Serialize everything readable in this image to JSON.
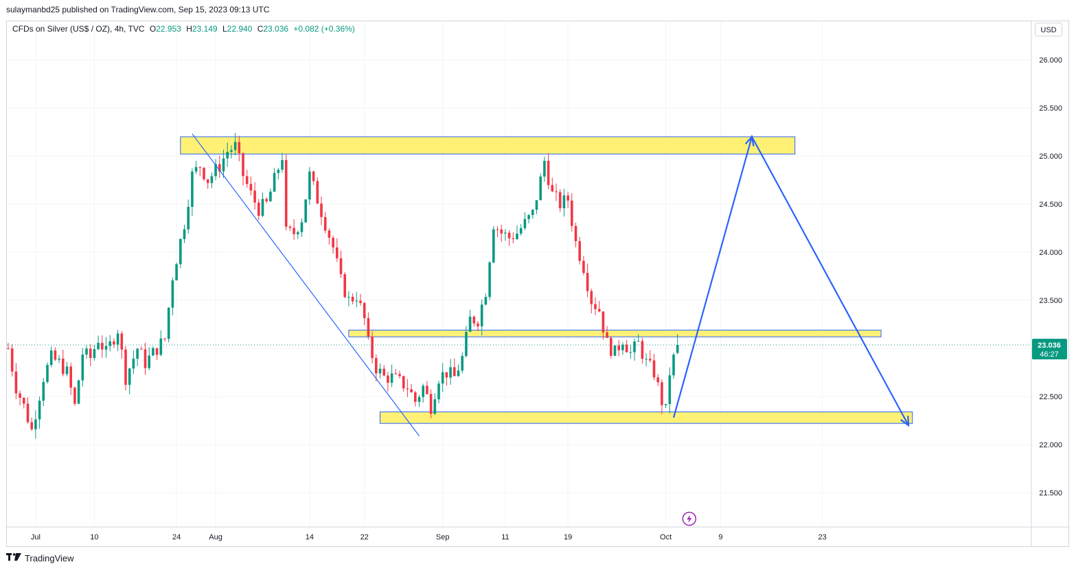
{
  "header": {
    "published": "sulaymanbd25 published on TradingView.com, Sep 15, 2023 09:13 UTC"
  },
  "legend": {
    "symbol": "CFDs on Silver (US$ / OZ), 4h, TVC",
    "o_label": "O",
    "o_value": "22.953",
    "h_label": "H",
    "h_value": "23.149",
    "l_label": "L",
    "l_value": "22.940",
    "c_label": "C",
    "c_value": "23.036",
    "change": "+0.082 (+0.36%)"
  },
  "currency_button": "USD",
  "footer": {
    "brand": "TradingView",
    "logo_icon": "tradingview-logo-icon"
  },
  "colors": {
    "up": "#089981",
    "down": "#f23645",
    "zone_fill": "#fff176",
    "zone_stroke": "#2962ff",
    "arrow": "#2962ff",
    "grid": "#f0f3fa",
    "price_tag": "#089981",
    "flash_icon": "#9c27b0"
  },
  "chart_data": {
    "type": "candlestick",
    "interval": "4h",
    "ylim": [
      21.15,
      26.35
    ],
    "yticks": [
      "26.000",
      "25.500",
      "25.000",
      "24.500",
      "24.000",
      "23.500",
      "23.000",
      "22.500",
      "22.000",
      "21.500"
    ],
    "ytick_values": [
      26.0,
      25.5,
      25.0,
      24.5,
      24.0,
      23.5,
      23.0,
      22.5,
      22.0,
      21.5
    ],
    "xticks": [
      "Jul",
      "10",
      "24",
      "Aug",
      "14",
      "22",
      "Sep",
      "11",
      "19",
      "Oct",
      "9",
      "23"
    ],
    "xtick_index": [
      7,
      22,
      43,
      53,
      77,
      91,
      111,
      127,
      143,
      168,
      182,
      208
    ],
    "last_price": "23.036",
    "countdown": "46:27",
    "bars_total": 172,
    "close_path": [
      {
        "i": 0,
        "p": 23.0
      },
      {
        "i": 2,
        "p": 22.6
      },
      {
        "i": 4,
        "p": 22.4
      },
      {
        "i": 6,
        "p": 22.15
      },
      {
        "i": 9,
        "p": 22.7
      },
      {
        "i": 11,
        "p": 22.9
      },
      {
        "i": 13,
        "p": 22.85
      },
      {
        "i": 15,
        "p": 22.75
      },
      {
        "i": 17,
        "p": 22.4
      },
      {
        "i": 19,
        "p": 22.95
      },
      {
        "i": 21,
        "p": 22.9
      },
      {
        "i": 23,
        "p": 23.1
      },
      {
        "i": 25,
        "p": 22.95
      },
      {
        "i": 28,
        "p": 23.2
      },
      {
        "i": 30,
        "p": 22.7
      },
      {
        "i": 33,
        "p": 23.0
      },
      {
        "i": 35,
        "p": 22.85
      },
      {
        "i": 37,
        "p": 22.95
      },
      {
        "i": 40,
        "p": 23.1
      },
      {
        "i": 42,
        "p": 23.75
      },
      {
        "i": 45,
        "p": 24.3
      },
      {
        "i": 47,
        "p": 24.8
      },
      {
        "i": 49,
        "p": 24.9
      },
      {
        "i": 51,
        "p": 24.75
      },
      {
        "i": 54,
        "p": 24.9
      },
      {
        "i": 56,
        "p": 25.05
      },
      {
        "i": 58,
        "p": 25.1
      },
      {
        "i": 60,
        "p": 24.8
      },
      {
        "i": 62,
        "p": 24.6
      },
      {
        "i": 64,
        "p": 24.45
      },
      {
        "i": 66,
        "p": 24.5
      },
      {
        "i": 68,
        "p": 24.75
      },
      {
        "i": 70,
        "p": 25.0
      },
      {
        "i": 71,
        "p": 24.2
      },
      {
        "i": 73,
        "p": 24.2
      },
      {
        "i": 75,
        "p": 24.35
      },
      {
        "i": 77,
        "p": 24.8
      },
      {
        "i": 79,
        "p": 24.55
      },
      {
        "i": 81,
        "p": 24.3
      },
      {
        "i": 83,
        "p": 24.05
      },
      {
        "i": 85,
        "p": 23.7
      },
      {
        "i": 87,
        "p": 23.5
      },
      {
        "i": 89,
        "p": 23.55
      },
      {
        "i": 91,
        "p": 23.3
      },
      {
        "i": 92,
        "p": 23.05
      },
      {
        "i": 94,
        "p": 22.8
      },
      {
        "i": 96,
        "p": 22.7
      },
      {
        "i": 98,
        "p": 22.7
      },
      {
        "i": 100,
        "p": 22.65
      },
      {
        "i": 102,
        "p": 22.6
      },
      {
        "i": 104,
        "p": 22.45
      },
      {
        "i": 106,
        "p": 22.6
      },
      {
        "i": 108,
        "p": 22.4
      },
      {
        "i": 110,
        "p": 22.7
      },
      {
        "i": 112,
        "p": 22.75
      },
      {
        "i": 114,
        "p": 22.7
      },
      {
        "i": 116,
        "p": 22.9
      },
      {
        "i": 118,
        "p": 23.3
      },
      {
        "i": 120,
        "p": 23.3
      },
      {
        "i": 122,
        "p": 23.6
      },
      {
        "i": 124,
        "p": 24.3
      },
      {
        "i": 126,
        "p": 24.2
      },
      {
        "i": 128,
        "p": 24.15
      },
      {
        "i": 130,
        "p": 24.2
      },
      {
        "i": 132,
        "p": 24.3
      },
      {
        "i": 134,
        "p": 24.4
      },
      {
        "i": 136,
        "p": 24.75
      },
      {
        "i": 137,
        "p": 24.95
      },
      {
        "i": 139,
        "p": 24.6
      },
      {
        "i": 141,
        "p": 24.5
      },
      {
        "i": 143,
        "p": 24.55
      },
      {
        "i": 145,
        "p": 24.1
      },
      {
        "i": 147,
        "p": 23.85
      },
      {
        "i": 149,
        "p": 23.5
      },
      {
        "i": 151,
        "p": 23.4
      },
      {
        "i": 153,
        "p": 23.05
      },
      {
        "i": 155,
        "p": 22.95
      },
      {
        "i": 157,
        "p": 23.1
      },
      {
        "i": 159,
        "p": 22.95
      },
      {
        "i": 161,
        "p": 23.05
      },
      {
        "i": 163,
        "p": 22.85
      },
      {
        "i": 165,
        "p": 22.75
      },
      {
        "i": 167,
        "p": 22.45
      },
      {
        "i": 168,
        "p": 22.35
      },
      {
        "i": 169,
        "p": 22.75
      },
      {
        "i": 171,
        "p": 23.036
      }
    ],
    "zones": [
      {
        "name": "resistance-zone",
        "top": 25.2,
        "bottom": 25.02,
        "from_index": 44,
        "to_index": 201
      },
      {
        "name": "middle-zone",
        "top": 23.19,
        "bottom": 23.12,
        "from_index": 87,
        "to_index": 223
      },
      {
        "name": "support-zone",
        "top": 22.34,
        "bottom": 22.22,
        "from_index": 95,
        "to_index": 231
      }
    ],
    "trendline": {
      "from": [
        47,
        25.23
      ],
      "to": [
        105,
        22.09
      ]
    },
    "projection": [
      [
        170,
        22.28
      ],
      [
        190,
        25.2
      ],
      [
        230,
        22.2
      ]
    ]
  }
}
